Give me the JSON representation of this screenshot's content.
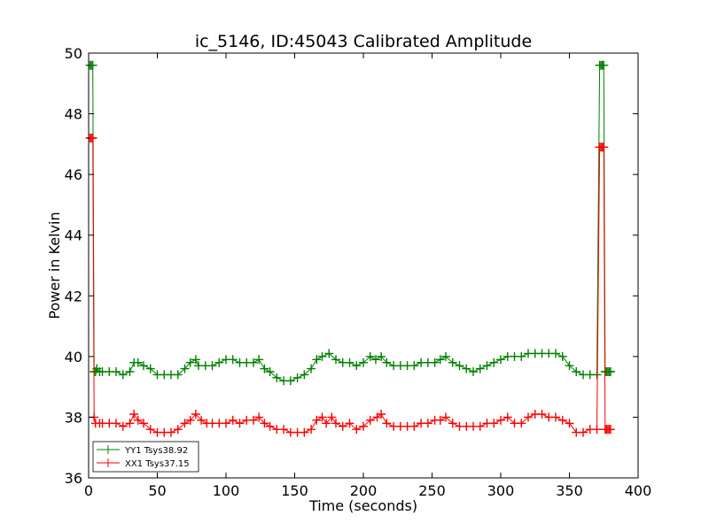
{
  "chart_data": {
    "type": "line",
    "title": "ic_5146, ID:45043 Calibrated Amplitude",
    "xlabel": "Time (seconds)",
    "ylabel": "Power in Kelvin",
    "xlim": [
      0,
      400
    ],
    "ylim": [
      36,
      50
    ],
    "xticks": [
      0,
      50,
      100,
      150,
      200,
      250,
      300,
      350,
      400
    ],
    "yticks": [
      36,
      38,
      40,
      42,
      44,
      46,
      48,
      50
    ],
    "grid": false,
    "legend_position": "lower-left",
    "series": [
      {
        "name": "YY1 Tsys38.92",
        "color": "#008000",
        "x": [
          1,
          2,
          3,
          4,
          5,
          6,
          8,
          10,
          15,
          20,
          25,
          30,
          33,
          36,
          40,
          45,
          50,
          55,
          60,
          65,
          70,
          74,
          78,
          80,
          85,
          90,
          95,
          100,
          105,
          110,
          115,
          120,
          124,
          128,
          132,
          137,
          142,
          147,
          152,
          157,
          162,
          166,
          170,
          175,
          180,
          185,
          190,
          195,
          200,
          205,
          209,
          213,
          217,
          222,
          227,
          232,
          237,
          242,
          247,
          252,
          256,
          260,
          265,
          270,
          275,
          280,
          285,
          290,
          295,
          300,
          305,
          310,
          315,
          320,
          325,
          330,
          335,
          340,
          345,
          350,
          355,
          360,
          365,
          370,
          372,
          373,
          374,
          375,
          376,
          377,
          378,
          379,
          380
        ],
        "y": [
          49.6,
          49.6,
          49.6,
          39.5,
          39.5,
          39.6,
          39.5,
          39.5,
          39.5,
          39.5,
          39.4,
          39.5,
          39.8,
          39.8,
          39.7,
          39.6,
          39.4,
          39.4,
          39.4,
          39.4,
          39.6,
          39.8,
          39.9,
          39.7,
          39.7,
          39.7,
          39.8,
          39.9,
          39.9,
          39.8,
          39.8,
          39.8,
          39.9,
          39.6,
          39.5,
          39.3,
          39.2,
          39.2,
          39.3,
          39.4,
          39.6,
          39.9,
          40.0,
          40.1,
          39.9,
          39.8,
          39.8,
          39.7,
          39.8,
          40.0,
          39.9,
          40.0,
          39.8,
          39.7,
          39.7,
          39.7,
          39.7,
          39.8,
          39.8,
          39.8,
          39.9,
          40.0,
          39.8,
          39.7,
          39.6,
          39.5,
          39.6,
          39.7,
          39.8,
          39.9,
          40.0,
          40.0,
          40.0,
          40.1,
          40.1,
          40.1,
          40.1,
          40.1,
          40.0,
          39.7,
          39.5,
          39.4,
          39.4,
          39.4,
          49.6,
          49.6,
          49.6,
          49.6,
          39.5,
          39.5,
          39.5,
          39.5,
          39.5
        ]
      },
      {
        "name": "XX1 Tsys37.15",
        "color": "#ff0000",
        "x": [
          1,
          2,
          3,
          4,
          5,
          8,
          10,
          15,
          20,
          25,
          30,
          33,
          36,
          40,
          45,
          50,
          55,
          60,
          65,
          70,
          74,
          78,
          82,
          86,
          90,
          95,
          100,
          105,
          110,
          115,
          120,
          124,
          128,
          132,
          137,
          142,
          147,
          152,
          157,
          162,
          166,
          170,
          173,
          177,
          180,
          185,
          190,
          195,
          200,
          205,
          210,
          213,
          217,
          222,
          227,
          232,
          237,
          242,
          247,
          252,
          256,
          260,
          265,
          270,
          275,
          280,
          285,
          290,
          295,
          300,
          305,
          310,
          315,
          320,
          325,
          330,
          335,
          340,
          345,
          350,
          355,
          360,
          365,
          370,
          372,
          373,
          374,
          375,
          376,
          377,
          378,
          379,
          380
        ],
        "y": [
          47.2,
          47.2,
          47.2,
          38.0,
          37.8,
          37.8,
          37.8,
          37.8,
          37.8,
          37.7,
          37.8,
          38.1,
          37.9,
          37.8,
          37.6,
          37.5,
          37.5,
          37.5,
          37.6,
          37.8,
          37.9,
          38.1,
          37.9,
          37.8,
          37.8,
          37.8,
          37.8,
          37.9,
          37.8,
          37.9,
          37.9,
          38.0,
          37.8,
          37.7,
          37.6,
          37.6,
          37.5,
          37.5,
          37.5,
          37.6,
          37.9,
          38.0,
          37.8,
          38.0,
          37.8,
          37.7,
          37.8,
          37.6,
          37.7,
          37.9,
          38.0,
          38.1,
          37.8,
          37.7,
          37.7,
          37.7,
          37.7,
          37.8,
          37.8,
          37.9,
          37.9,
          38.0,
          37.8,
          37.7,
          37.7,
          37.7,
          37.7,
          37.8,
          37.8,
          37.9,
          38.0,
          37.8,
          37.8,
          38.0,
          38.1,
          38.1,
          38.0,
          38.0,
          37.9,
          37.8,
          37.5,
          37.5,
          37.6,
          37.6,
          46.9,
          46.9,
          46.9,
          46.9,
          37.6,
          37.6,
          37.6,
          37.6,
          37.6
        ]
      }
    ]
  }
}
